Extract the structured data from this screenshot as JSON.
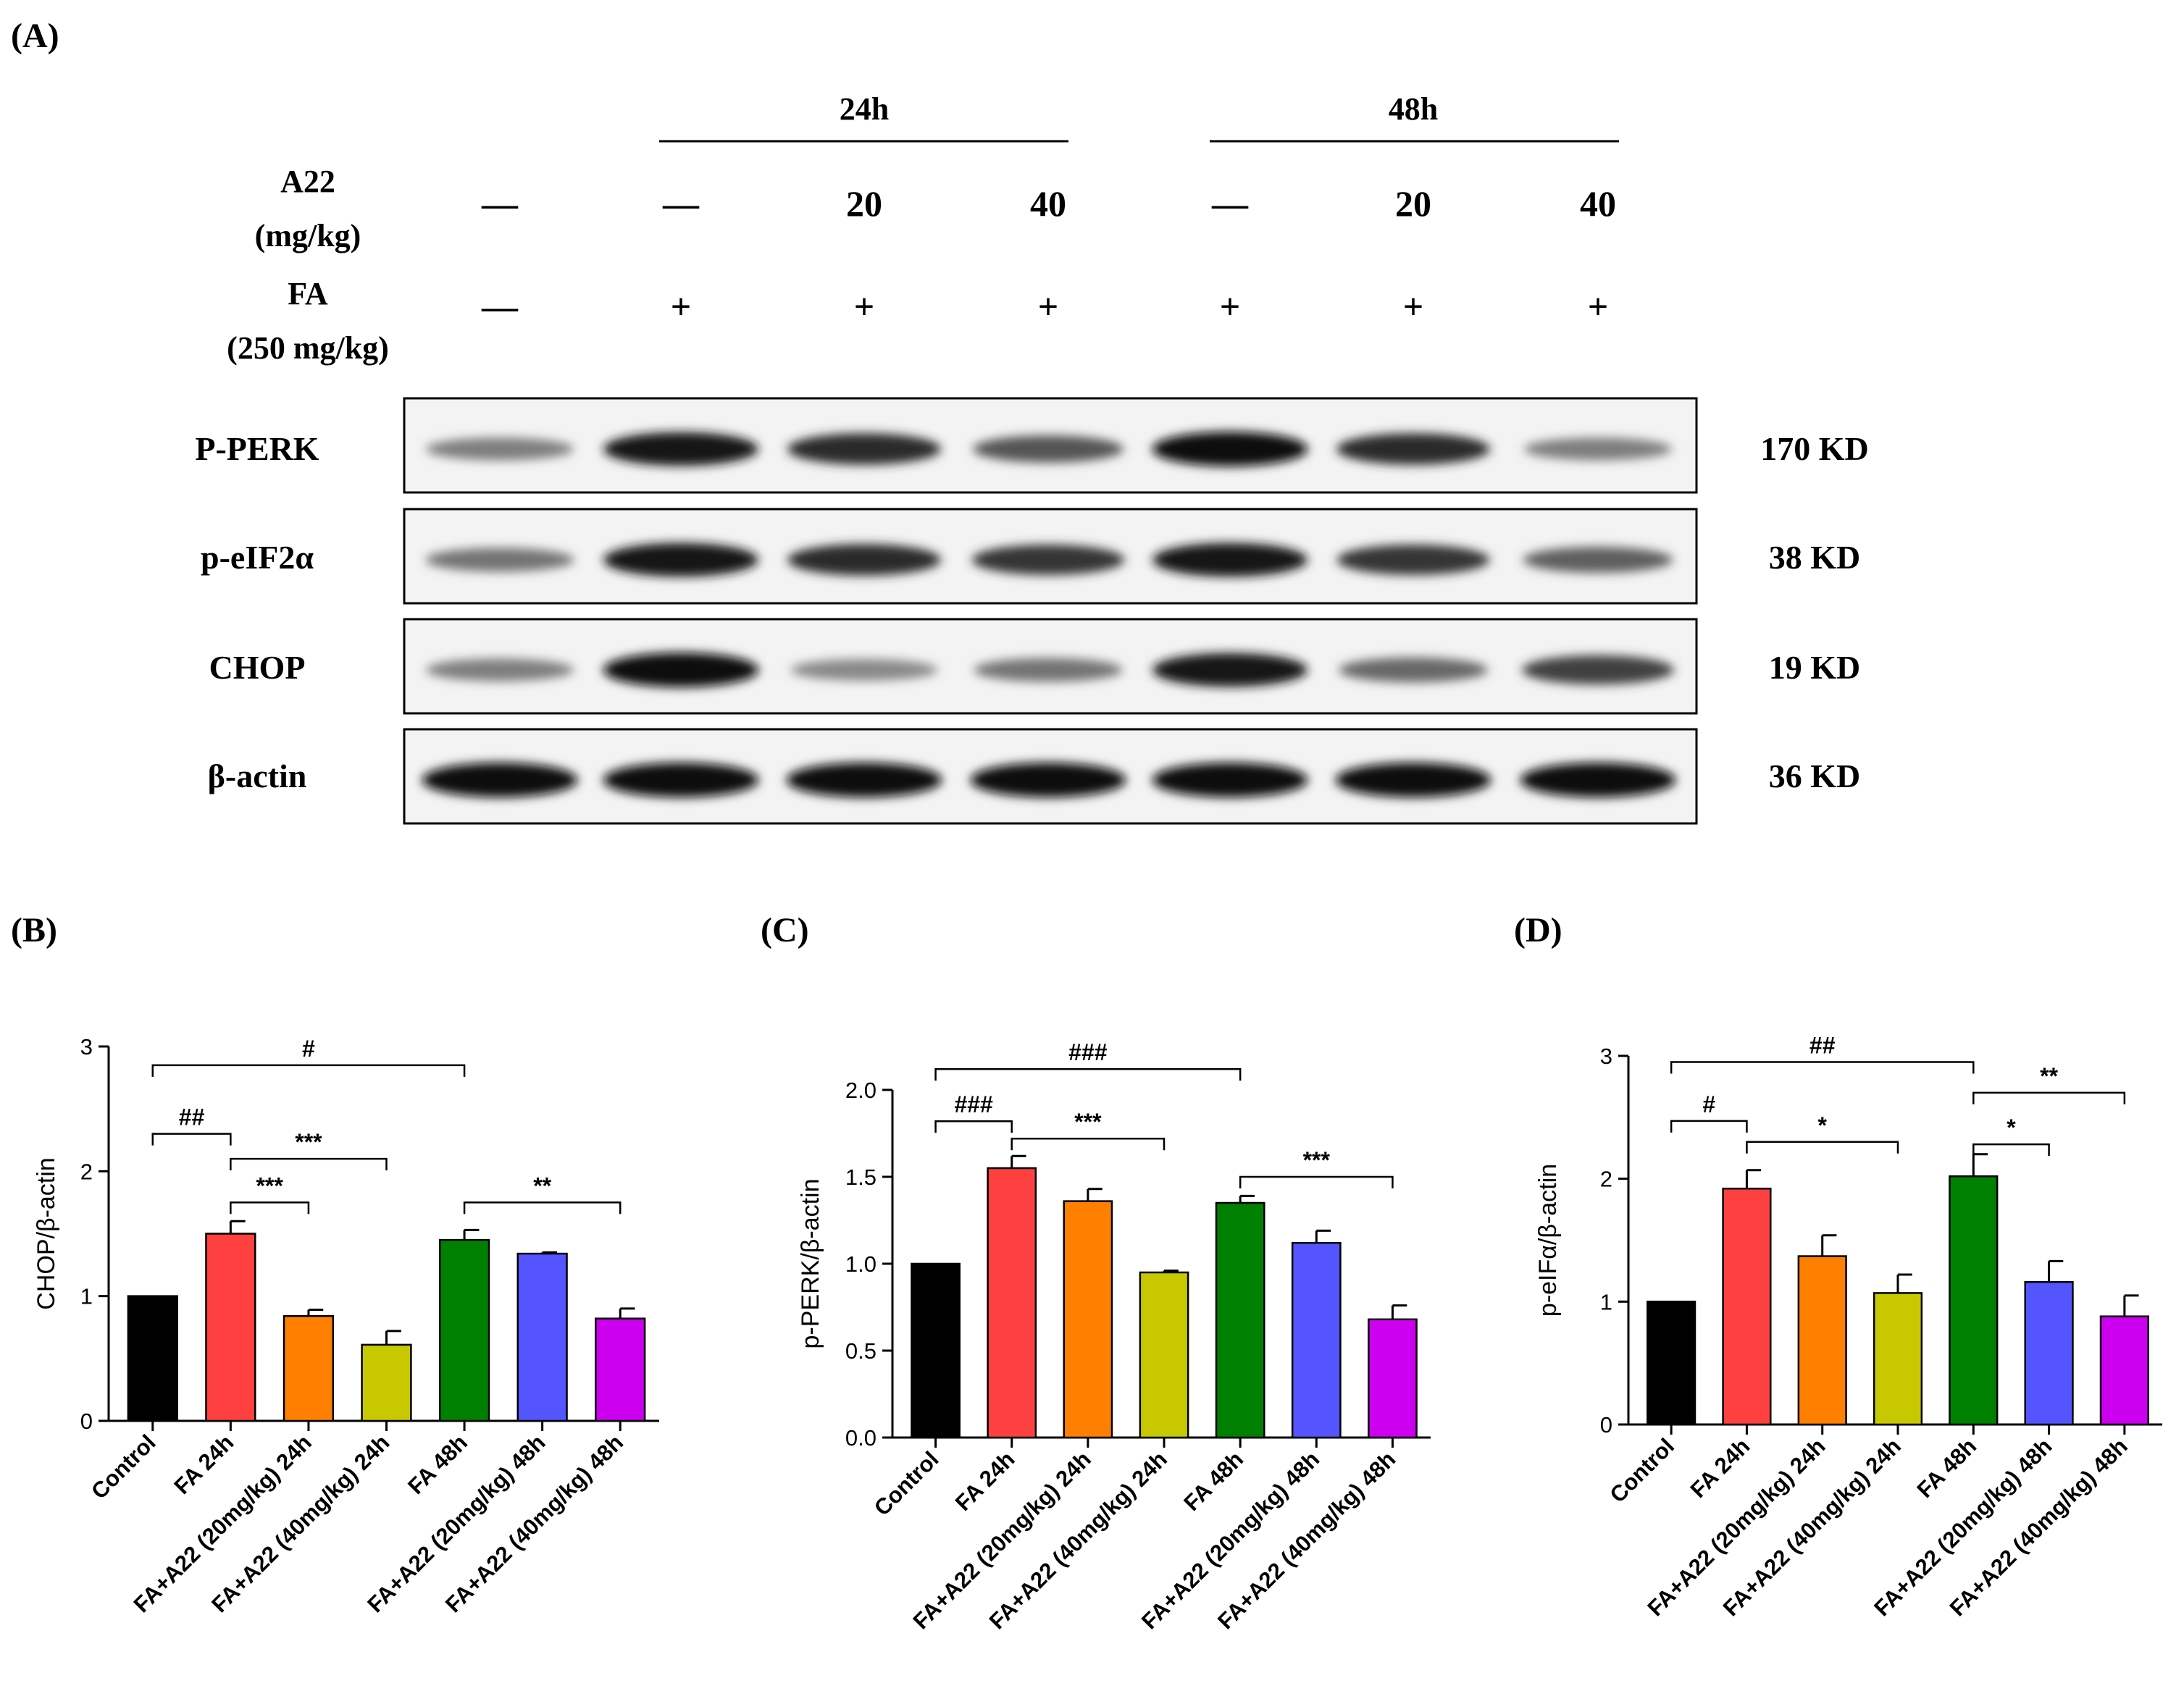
{
  "panel_labels": [
    "(A)",
    "(B)",
    "(C)",
    "(D)"
  ],
  "blot": {
    "group_labels": [
      "24h",
      "48h"
    ],
    "a22_label": [
      "A22",
      "(mg/kg)"
    ],
    "fa_label": [
      "FA",
      "(250 mg/kg)"
    ],
    "a22_values": [
      "—",
      "—",
      "20",
      "40",
      "—",
      "20",
      "40"
    ],
    "fa_values": [
      "—",
      "+",
      "+",
      "+",
      "+",
      "+",
      "+"
    ],
    "rows": [
      {
        "name": "P-PERK",
        "kd": "170 KD",
        "intensity": [
          0.45,
          0.95,
          0.85,
          0.65,
          1.0,
          0.85,
          0.45
        ]
      },
      {
        "name": "p-eIF2α",
        "kd": "38 KD",
        "intensity": [
          0.5,
          0.95,
          0.85,
          0.8,
          0.95,
          0.8,
          0.6
        ]
      },
      {
        "name": "CHOP",
        "kd": "19 KD",
        "intensity": [
          0.45,
          1.0,
          0.4,
          0.5,
          0.95,
          0.55,
          0.75
        ]
      },
      {
        "name": "β-actin",
        "kd": "36 KD",
        "intensity": [
          1.0,
          1.0,
          1.0,
          1.0,
          1.0,
          1.0,
          1.0
        ]
      }
    ]
  },
  "chart_data": [
    {
      "type": "bar",
      "ylabel": "CHOP/β-actin",
      "ylim": [
        0,
        3
      ],
      "yticks": [
        "0",
        "1",
        "2",
        "3"
      ],
      "categories": [
        "Control",
        "FA 24h",
        "FA+A22 (20mg/kg) 24h",
        "FA+A22 (40mg/kg) 24h",
        "FA 48h",
        "FA+A22 (20mg/kg) 48h",
        "FA+A22 (40mg/kg) 48h"
      ],
      "values": [
        1.0,
        1.5,
        0.84,
        0.61,
        1.45,
        1.34,
        0.82
      ],
      "errors": [
        0.0,
        0.1,
        0.05,
        0.11,
        0.08,
        0.01,
        0.08
      ],
      "colors": [
        "#000000",
        "#ff4040",
        "#ff8000",
        "#c8c800",
        "#008000",
        "#5555ff",
        "#cc00ee"
      ],
      "annotations": [
        {
          "label": "#",
          "from": 0,
          "to": 4,
          "y": 2.85
        },
        {
          "label": "##",
          "from": 0,
          "to": 1,
          "y": 2.3
        },
        {
          "label": "***",
          "from": 1,
          "to": 3,
          "y": 2.1
        },
        {
          "label": "***",
          "from": 1,
          "to": 2,
          "y": 1.75
        },
        {
          "label": "**",
          "from": 4,
          "to": 6,
          "y": 1.75
        }
      ]
    },
    {
      "type": "bar",
      "ylabel": "p-PERK/β-actin",
      "ylim": [
        0,
        2.0
      ],
      "yticks": [
        "0.0",
        "0.5",
        "1.0",
        "1.5",
        "2.0"
      ],
      "categories": [
        "Control",
        "FA 24h",
        "FA+A22 (20mg/kg) 24h",
        "FA+A22 (40mg/kg) 24h",
        "FA 48h",
        "FA+A22 (20mg/kg) 48h",
        "FA+A22 (40mg/kg) 48h"
      ],
      "values": [
        1.0,
        1.55,
        1.36,
        0.95,
        1.35,
        1.12,
        0.68
      ],
      "errors": [
        0.0,
        0.07,
        0.07,
        0.01,
        0.04,
        0.07,
        0.08
      ],
      "colors": [
        "#000000",
        "#ff4040",
        "#ff8000",
        "#c8c800",
        "#008000",
        "#5555ff",
        "#cc00ee"
      ],
      "annotations": [
        {
          "label": "###",
          "from": 0,
          "to": 4,
          "y": 2.12
        },
        {
          "label": "###",
          "from": 0,
          "to": 1,
          "y": 1.82
        },
        {
          "label": "***",
          "from": 1,
          "to": 3,
          "y": 1.72
        },
        {
          "label": "***",
          "from": 4,
          "to": 6,
          "y": 1.5
        }
      ]
    },
    {
      "type": "bar",
      "ylabel": "p-eIFα/β-actin",
      "ylim": [
        0,
        3
      ],
      "yticks": [
        "0",
        "1",
        "2",
        "3"
      ],
      "categories": [
        "Control",
        "FA 24h",
        "FA+A22 (20mg/kg) 24h",
        "FA+A22 (40mg/kg) 24h",
        "FA 48h",
        "FA+A22 (20mg/kg) 48h",
        "FA+A22 (40mg/kg) 48h"
      ],
      "values": [
        1.0,
        1.92,
        1.37,
        1.07,
        2.02,
        1.16,
        0.88
      ],
      "errors": [
        0.0,
        0.15,
        0.17,
        0.15,
        0.18,
        0.17,
        0.17
      ],
      "colors": [
        "#000000",
        "#ff4040",
        "#ff8000",
        "#c8c800",
        "#008000",
        "#5555ff",
        "#cc00ee"
      ],
      "annotations": [
        {
          "label": "##",
          "from": 0,
          "to": 4,
          "y": 2.95
        },
        {
          "label": "#",
          "from": 0,
          "to": 1,
          "y": 2.47
        },
        {
          "label": "**",
          "from": 4,
          "to": 6,
          "y": 2.7
        },
        {
          "label": "*",
          "from": 1,
          "to": 3,
          "y": 2.3
        },
        {
          "label": "*",
          "from": 4,
          "to": 5,
          "y": 2.28
        }
      ]
    }
  ]
}
